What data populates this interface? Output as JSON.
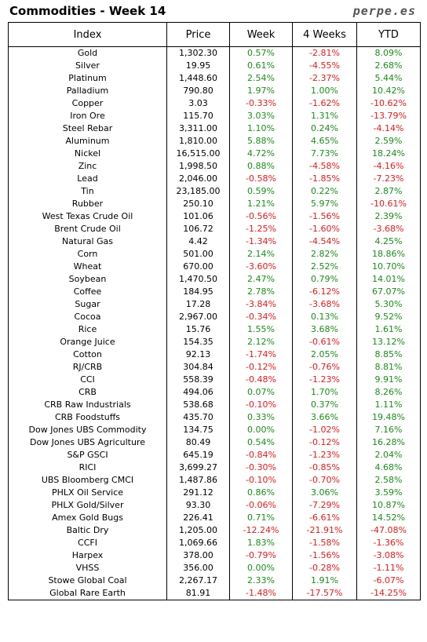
{
  "header": {
    "title": "Commodities - Week 14",
    "brand": "perpe.es"
  },
  "chart_data": {
    "type": "table",
    "columns": [
      "Index",
      "Price",
      "Week",
      "4 Weeks",
      "YTD"
    ],
    "rows": [
      [
        "Gold",
        "1,302.30",
        "0.57%",
        "-2.81%",
        "8.09%"
      ],
      [
        "Silver",
        "19.95",
        "0.61%",
        "-4.55%",
        "2.68%"
      ],
      [
        "Platinum",
        "1,448.60",
        "2.54%",
        "-2.37%",
        "5.44%"
      ],
      [
        "Palladium",
        "790.80",
        "1.97%",
        "1.00%",
        "10.42%"
      ],
      [
        "Copper",
        "3.03",
        "-0.33%",
        "-1.62%",
        "-10.62%"
      ],
      [
        "Iron Ore",
        "115.70",
        "3.03%",
        "1.31%",
        "-13.79%"
      ],
      [
        "Steel Rebar",
        "3,311.00",
        "1.10%",
        "0.24%",
        "-4.14%"
      ],
      [
        "Aluminum",
        "1,810.00",
        "5.88%",
        "4.65%",
        "2.59%"
      ],
      [
        "Nickel",
        "16,515.00",
        "4.72%",
        "7.73%",
        "18.24%"
      ],
      [
        "Zinc",
        "1,998.50",
        "0.88%",
        "-4.58%",
        "-4.16%"
      ],
      [
        "Lead",
        "2,046.00",
        "-0.58%",
        "-1.85%",
        "-7.23%"
      ],
      [
        "Tin",
        "23,185.00",
        "0.59%",
        "0.22%",
        "2.87%"
      ],
      [
        "Rubber",
        "250.10",
        "1.21%",
        "5.97%",
        "-10.61%"
      ],
      [
        "West Texas Crude Oil",
        "101.06",
        "-0.56%",
        "-1.56%",
        "2.39%"
      ],
      [
        "Brent Crude Oil",
        "106.72",
        "-1.25%",
        "-1.60%",
        "-3.68%"
      ],
      [
        "Natural Gas",
        "4.42",
        "-1.34%",
        "-4.54%",
        "4.25%"
      ],
      [
        "Corn",
        "501.00",
        "2.14%",
        "2.82%",
        "18.86%"
      ],
      [
        "Wheat",
        "670.00",
        "-3.60%",
        "2.52%",
        "10.70%"
      ],
      [
        "Soybean",
        "1,470.50",
        "2.47%",
        "0.79%",
        "14.01%"
      ],
      [
        "Coffee",
        "184.95",
        "2.78%",
        "-6.12%",
        "67.07%"
      ],
      [
        "Sugar",
        "17.28",
        "-3.84%",
        "-3.68%",
        "5.30%"
      ],
      [
        "Cocoa",
        "2,967.00",
        "-0.34%",
        "0.13%",
        "9.52%"
      ],
      [
        "Rice",
        "15.76",
        "1.55%",
        "3.68%",
        "1.61%"
      ],
      [
        "Orange Juice",
        "154.35",
        "2.12%",
        "-0.61%",
        "13.12%"
      ],
      [
        "Cotton",
        "92.13",
        "-1.74%",
        "2.05%",
        "8.85%"
      ],
      [
        "RJ/CRB",
        "304.84",
        "-0.12%",
        "-0.76%",
        "8.81%"
      ],
      [
        "CCI",
        "558.39",
        "-0.48%",
        "-1.23%",
        "9.91%"
      ],
      [
        "CRB",
        "494.06",
        "0.07%",
        "1.70%",
        "8.26%"
      ],
      [
        "CRB Raw Industrials",
        "538.68",
        "-0.10%",
        "0.37%",
        "1.11%"
      ],
      [
        "CRB Foodstuffs",
        "435.70",
        "0.33%",
        "3.66%",
        "19.48%"
      ],
      [
        "Dow Jones UBS Commodity",
        "134.75",
        "0.00%",
        "-1.02%",
        "7.16%"
      ],
      [
        "Dow Jones UBS Agriculture",
        "80.49",
        "0.54%",
        "-0.12%",
        "16.28%"
      ],
      [
        "S&P GSCI",
        "645.19",
        "-0.84%",
        "-1.23%",
        "2.04%"
      ],
      [
        "RICI",
        "3,699.27",
        "-0.30%",
        "-0.85%",
        "4.68%"
      ],
      [
        "UBS Bloomberg CMCI",
        "1,487.86",
        "-0.10%",
        "-0.70%",
        "2.58%"
      ],
      [
        "PHLX Oil Service",
        "291.12",
        "0.86%",
        "3.06%",
        "3.59%"
      ],
      [
        "PHLX Gold/Silver",
        "93.30",
        "-0.06%",
        "-7.29%",
        "10.87%"
      ],
      [
        "Amex Gold Bugs",
        "226.41",
        "0.71%",
        "-6.61%",
        "14.52%"
      ],
      [
        "Baltic Dry",
        "1,205.00",
        "-12.24%",
        "-21.91%",
        "-47.08%"
      ],
      [
        "CCFI",
        "1,069.66",
        "1.83%",
        "-1.58%",
        "-1.36%"
      ],
      [
        "Harpex",
        "378.00",
        "-0.79%",
        "-1.56%",
        "-3.08%"
      ],
      [
        "VHSS",
        "356.00",
        "0.00%",
        "-0.28%",
        "-1.11%"
      ],
      [
        "Stowe Global Coal",
        "2,267.17",
        "2.33%",
        "1.91%",
        "-6.07%"
      ],
      [
        "Global Rare Earth",
        "81.91",
        "-1.48%",
        "-17.57%",
        "-14.25%"
      ]
    ]
  },
  "colors": {
    "positive": "#1e8a1e",
    "negative": "#e01b1b"
  }
}
